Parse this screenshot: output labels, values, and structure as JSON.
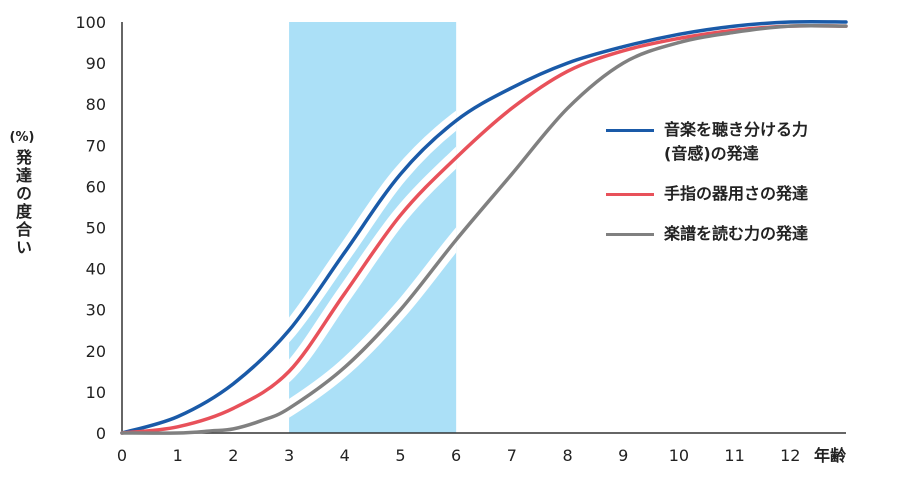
{
  "chart_data": {
    "type": "line",
    "ylabel_unit": "(%)",
    "ylabel": "発達の度合い",
    "xlabel": "年齢",
    "ylim": [
      0,
      100
    ],
    "xlim": [
      0,
      13
    ],
    "yticks": [
      0,
      10,
      20,
      30,
      40,
      50,
      60,
      70,
      80,
      90,
      100
    ],
    "xticks": [
      0,
      1,
      2,
      3,
      4,
      5,
      6,
      7,
      8,
      9,
      10,
      11,
      12
    ],
    "highlight_band": {
      "x_from": 3,
      "x_to": 6,
      "color": "#abe0f7"
    },
    "grid": false,
    "legend_position": "right",
    "series": [
      {
        "name": "音楽を聴き分ける力\n(音感)の発達",
        "color": "#1a5aa8",
        "points": [
          [
            0,
            0
          ],
          [
            1,
            4
          ],
          [
            2,
            12
          ],
          [
            3,
            25
          ],
          [
            4,
            44
          ],
          [
            5,
            63
          ],
          [
            6,
            76
          ],
          [
            7,
            84
          ],
          [
            8,
            90
          ],
          [
            9,
            94
          ],
          [
            10,
            97
          ],
          [
            11,
            99
          ],
          [
            12,
            100
          ],
          [
            13,
            100
          ]
        ]
      },
      {
        "name": "手指の器用さの発達",
        "color": "#e8515a",
        "points": [
          [
            0,
            0
          ],
          [
            1,
            1.5
          ],
          [
            2,
            6
          ],
          [
            3,
            15
          ],
          [
            4,
            34
          ],
          [
            5,
            53
          ],
          [
            6,
            67
          ],
          [
            7,
            79
          ],
          [
            8,
            88
          ],
          [
            9,
            93
          ],
          [
            10,
            96
          ],
          [
            11,
            98
          ],
          [
            12,
            99
          ],
          [
            13,
            99
          ]
        ]
      },
      {
        "name": "楽譜を読む力の発達",
        "color": "#808080",
        "points": [
          [
            0,
            0
          ],
          [
            1,
            0
          ],
          [
            1.6,
            0.5
          ],
          [
            2,
            1
          ],
          [
            2.5,
            3
          ],
          [
            3,
            6
          ],
          [
            4,
            16
          ],
          [
            5,
            30
          ],
          [
            6,
            47
          ],
          [
            7,
            63
          ],
          [
            8,
            79
          ],
          [
            9,
            90
          ],
          [
            10,
            95
          ],
          [
            11,
            97.5
          ],
          [
            12,
            99
          ],
          [
            13,
            99
          ]
        ]
      }
    ]
  }
}
